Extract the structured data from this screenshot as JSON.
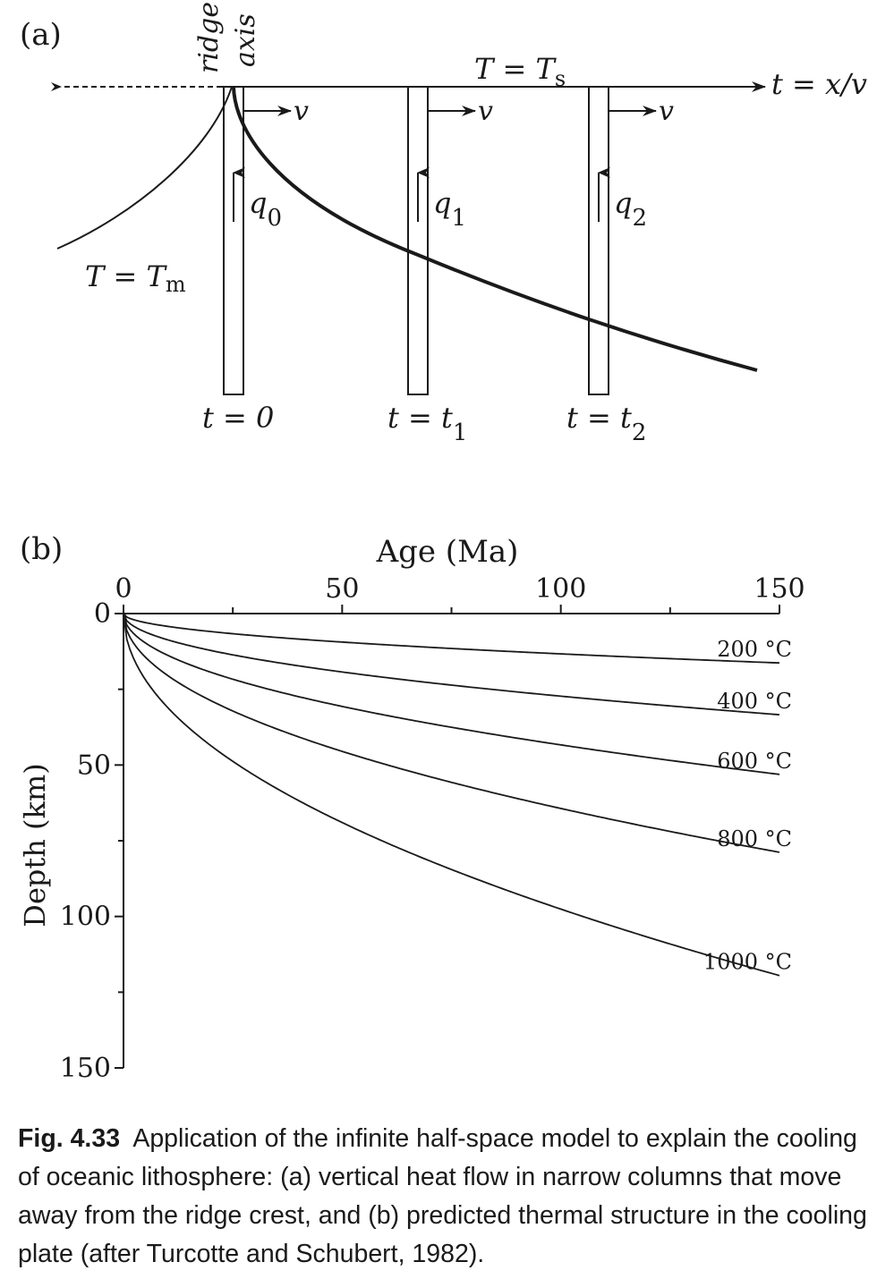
{
  "panel_a": {
    "label": "(a)",
    "ridge_label_1": "ridge",
    "ridge_label_2": "axis",
    "surface_temp": {
      "main": "T = T",
      "sub": "s"
    },
    "mantle_temp": {
      "main": "T = T",
      "sub": "m"
    },
    "time_axis_label": "t = x/v",
    "velocity_label": "v",
    "columns": [
      {
        "heat_flow": "q",
        "heat_flow_sub": "0",
        "time": "t = 0",
        "time_sub": ""
      },
      {
        "heat_flow": "q",
        "heat_flow_sub": "1",
        "time": "t = t",
        "time_sub": "1"
      },
      {
        "heat_flow": "q",
        "heat_flow_sub": "2",
        "time": "t = t",
        "time_sub": "2"
      }
    ]
  },
  "panel_b": {
    "label": "(b)",
    "chart_data": {
      "type": "line",
      "xlabel": "Age (Ma)",
      "ylabel": "Depth (km)",
      "xlim": [
        0,
        150
      ],
      "ylim": [
        0,
        150
      ],
      "y_inverted": true,
      "x_axis_position": "top",
      "x_ticks": [
        0,
        50,
        100,
        150
      ],
      "y_ticks": [
        0,
        50,
        100,
        150
      ],
      "x_ticks_labels": [
        "0",
        "50",
        "100",
        "150"
      ],
      "y_ticks_labels": [
        "0",
        "50",
        "100",
        "150"
      ],
      "x": [
        0,
        5,
        10,
        20,
        30,
        40,
        50,
        60,
        70,
        80,
        90,
        100,
        110,
        120,
        130,
        140,
        150
      ],
      "series": [
        {
          "name": "200 °C",
          "values": [
            0,
            3.0,
            4.2,
            6.0,
            7.3,
            8.4,
            9.4,
            10.3,
            11.2,
            11.9,
            12.6,
            13.3,
            14.0,
            14.6,
            15.2,
            15.7,
            16.3
          ]
        },
        {
          "name": "400 °C",
          "values": [
            0,
            6.1,
            8.6,
            12.2,
            15.0,
            17.3,
            19.3,
            21.2,
            22.9,
            24.4,
            25.9,
            27.3,
            28.6,
            29.9,
            31.1,
            32.3,
            33.4
          ]
        },
        {
          "name": "600 °C",
          "values": [
            0,
            9.7,
            13.7,
            19.4,
            23.7,
            27.4,
            30.7,
            33.6,
            36.3,
            38.8,
            41.1,
            43.4,
            45.5,
            47.5,
            49.5,
            51.3,
            53.1
          ]
        },
        {
          "name": "800 °C",
          "values": [
            0,
            14.4,
            20.4,
            28.8,
            35.3,
            40.7,
            45.5,
            49.9,
            53.9,
            57.6,
            61.1,
            64.4,
            67.5,
            70.5,
            73.4,
            76.2,
            78.8
          ]
        },
        {
          "name": "1000 °C",
          "values": [
            0,
            21.8,
            30.9,
            43.6,
            53.4,
            61.7,
            69.0,
            75.6,
            81.6,
            87.3,
            92.6,
            97.6,
            102.3,
            106.8,
            111.2,
            115.4,
            119.5
          ]
        }
      ]
    }
  },
  "caption": {
    "fig_number": "Fig. 4.33",
    "text": "Application of the infinite half-space model to explain the cooling of oceanic lithosphere: (a) vertical heat flow in narrow columns that move away from the ridge crest, and (b) predicted thermal structure in the cooling plate (after Turcotte and Schubert, 1982)."
  }
}
